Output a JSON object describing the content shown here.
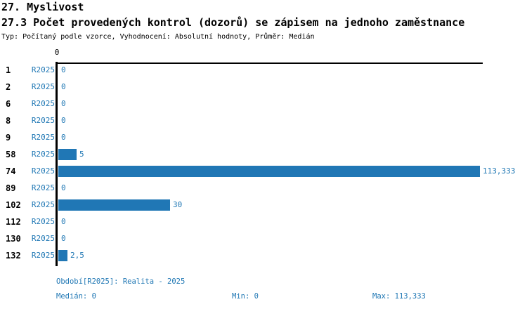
{
  "header": {
    "title_line1": "27. Myslivost",
    "title_line2": "27.3 Počet provedených kontrol (dozorů) se zápisem na jednoho zaměstnance",
    "subtitle": "Typ: Počítaný podle vzorce, Vyhodnocení: Absolutní hodnoty, Průměr: Medián"
  },
  "chart_data": {
    "type": "bar",
    "orientation": "horizontal",
    "title": "27.3 Počet provedených kontrol (dozorů) se zápisem na jednoho zaměstnance",
    "categories": [
      "1",
      "2",
      "6",
      "8",
      "9",
      "58",
      "74",
      "89",
      "102",
      "112",
      "130",
      "132"
    ],
    "series": [
      {
        "name": "R2025",
        "values": [
          0,
          0,
          0,
          0,
          0,
          5,
          113.333,
          0,
          30,
          0,
          0,
          2.5
        ],
        "value_labels": [
          "0",
          "0",
          "0",
          "0",
          "0",
          "5",
          "113,333",
          "0",
          "30",
          "0",
          "0",
          "2,5"
        ]
      }
    ],
    "x_axis": {
      "min": 0,
      "max": 113.333,
      "tick_labels": [
        "0"
      ]
    },
    "grid": false,
    "legend_position": "none",
    "bar_color": "#2077b5",
    "label_color": "#1f77b4"
  },
  "axis": {
    "zero_tick": "0"
  },
  "footer": {
    "period": "Období[R2025]: Realita - 2025",
    "median": "Medián: 0",
    "min": "Min: 0",
    "max": "Max: 113,333"
  },
  "colors": {
    "bar_blue": "#2077b5",
    "text_blue": "#1f77b4",
    "text_black": "#000000",
    "background": "#ffffff"
  }
}
